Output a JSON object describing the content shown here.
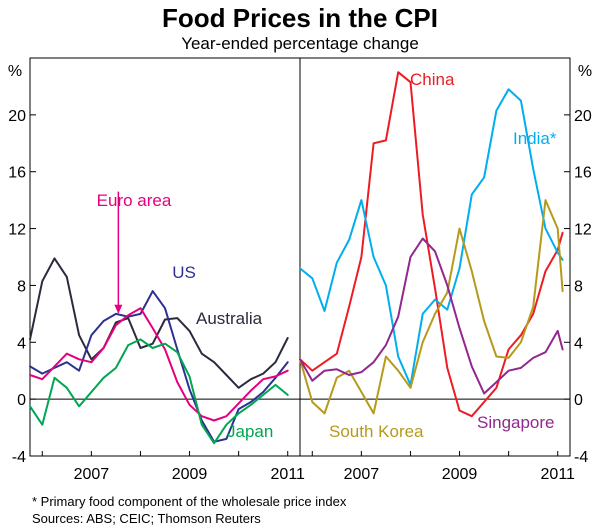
{
  "chart_data": {
    "type": "line",
    "title": "Food Prices in the CPI",
    "subtitle": "Year-ended percentage change",
    "yunit": "%",
    "ylim": [
      -4,
      24
    ],
    "yticks": [
      -4,
      0,
      4,
      8,
      12,
      16,
      20
    ],
    "footnote": "*    Primary food component of the wholesale price index",
    "sources": "Sources: ABS; CEIC; Thomson Reuters",
    "panels": [
      {
        "name": "left",
        "xlim": [
          2005.75,
          2011.25
        ],
        "xticks": [
          {
            "value": 2007,
            "label": "2007"
          },
          {
            "value": 2009,
            "label": "2009"
          },
          {
            "value": 2011,
            "label": "2011"
          }
        ],
        "annotation": {
          "label": "Euro area",
          "series": "Euro area",
          "from": [
            2007.55,
            14.6
          ],
          "to": [
            2007.55,
            6.5
          ]
        },
        "series": [
          {
            "name": "Australia",
            "label": "Australia",
            "color": "#2b2b3d",
            "x": [
              2005.75,
              2006.0,
              2006.25,
              2006.5,
              2006.75,
              2007.0,
              2007.25,
              2007.5,
              2007.75,
              2008.0,
              2008.25,
              2008.5,
              2008.75,
              2009.0,
              2009.25,
              2009.5,
              2009.75,
              2010.0,
              2010.25,
              2010.5,
              2010.75,
              2011.0
            ],
            "y": [
              4.2,
              8.3,
              9.9,
              8.6,
              4.5,
              2.8,
              3.6,
              5.4,
              5.7,
              3.6,
              3.9,
              5.6,
              5.7,
              4.8,
              3.2,
              2.6,
              1.7,
              0.8,
              1.4,
              1.8,
              2.6,
              4.3
            ]
          },
          {
            "name": "US",
            "label": "US",
            "color": "#2e3192",
            "x": [
              2005.75,
              2006.0,
              2006.25,
              2006.5,
              2006.75,
              2007.0,
              2007.25,
              2007.5,
              2007.75,
              2008.0,
              2008.25,
              2008.5,
              2008.75,
              2009.0,
              2009.25,
              2009.5,
              2009.75,
              2010.0,
              2010.25,
              2010.5,
              2010.75,
              2011.0
            ],
            "y": [
              2.3,
              1.8,
              2.2,
              2.6,
              2.0,
              4.5,
              5.5,
              6.0,
              5.8,
              6.0,
              7.6,
              6.4,
              3.5,
              0.7,
              -1.5,
              -3.0,
              -2.8,
              -0.7,
              -0.2,
              0.5,
              1.5,
              2.6
            ]
          },
          {
            "name": "Euro area",
            "label": "Euro area",
            "color": "#e6007e",
            "x": [
              2005.75,
              2006.0,
              2006.25,
              2006.5,
              2006.75,
              2007.0,
              2007.25,
              2007.5,
              2007.75,
              2008.0,
              2008.25,
              2008.5,
              2008.75,
              2009.0,
              2009.25,
              2009.5,
              2009.75,
              2010.0,
              2010.25,
              2010.5,
              2010.75,
              2011.0
            ],
            "y": [
              1.7,
              1.4,
              2.3,
              3.2,
              2.8,
              2.6,
              3.6,
              5.2,
              5.9,
              6.4,
              5.0,
              3.5,
              1.2,
              -0.4,
              -1.2,
              -1.5,
              -1.2,
              -0.3,
              0.6,
              1.4,
              1.6,
              2.0
            ]
          },
          {
            "name": "Japan",
            "label": "Japan",
            "color": "#00a651",
            "x": [
              2005.75,
              2006.0,
              2006.25,
              2006.5,
              2006.75,
              2007.0,
              2007.25,
              2007.5,
              2007.75,
              2008.0,
              2008.25,
              2008.5,
              2008.75,
              2009.0,
              2009.25,
              2009.5,
              2009.75,
              2010.0,
              2010.25,
              2010.5,
              2010.75,
              2011.0
            ],
            "y": [
              -0.5,
              -1.8,
              1.5,
              0.8,
              -0.5,
              0.5,
              1.5,
              2.2,
              3.8,
              4.2,
              3.6,
              3.9,
              3.3,
              1.6,
              -1.8,
              -3.1,
              -1.8,
              -1.0,
              -0.4,
              0.3,
              1.0,
              0.3
            ]
          }
        ]
      },
      {
        "name": "right",
        "xlim": [
          2005.75,
          2011.25
        ],
        "xticks": [
          {
            "value": 2007,
            "label": "2007"
          },
          {
            "value": 2009,
            "label": "2009"
          },
          {
            "value": 2011,
            "label": "2011"
          }
        ],
        "series": [
          {
            "name": "China",
            "label": "China",
            "color": "#ed1c24",
            "x": [
              2005.75,
              2006.0,
              2006.25,
              2006.5,
              2006.75,
              2007.0,
              2007.25,
              2007.5,
              2007.75,
              2008.0,
              2008.25,
              2008.5,
              2008.75,
              2009.0,
              2009.25,
              2009.5,
              2009.75,
              2010.0,
              2010.25,
              2010.5,
              2010.75,
              2011.0,
              2011.1
            ],
            "y": [
              2.8,
              2.0,
              2.6,
              3.2,
              6.5,
              10.0,
              18.0,
              18.2,
              23.0,
              22.3,
              13.0,
              7.8,
              2.2,
              -0.8,
              -1.2,
              -0.2,
              0.8,
              3.5,
              4.5,
              6.0,
              9.0,
              10.5,
              11.7
            ]
          },
          {
            "name": "India",
            "label": "India*",
            "color": "#00aeef",
            "x": [
              2005.75,
              2006.0,
              2006.25,
              2006.5,
              2006.75,
              2007.0,
              2007.25,
              2007.5,
              2007.75,
              2008.0,
              2008.25,
              2008.5,
              2008.75,
              2009.0,
              2009.25,
              2009.5,
              2009.75,
              2010.0,
              2010.25,
              2010.5,
              2010.75,
              2011.0,
              2011.1
            ],
            "y": [
              9.2,
              8.5,
              6.2,
              9.6,
              11.2,
              14.0,
              10.0,
              8.0,
              3.0,
              1.0,
              6.0,
              7.0,
              6.3,
              9.2,
              14.4,
              15.6,
              20.3,
              21.8,
              21.0,
              16.2,
              12.0,
              10.3,
              9.8
            ]
          },
          {
            "name": "South Korea",
            "label": "South Korea",
            "color": "#b59a1c",
            "x": [
              2005.75,
              2006.0,
              2006.25,
              2006.5,
              2006.75,
              2007.0,
              2007.25,
              2007.5,
              2007.75,
              2008.0,
              2008.25,
              2008.5,
              2008.75,
              2009.0,
              2009.25,
              2009.5,
              2009.75,
              2010.0,
              2010.25,
              2010.5,
              2010.75,
              2011.0,
              2011.1
            ],
            "y": [
              2.8,
              -0.2,
              -1.0,
              1.5,
              2.0,
              0.5,
              -1.0,
              3.0,
              2.0,
              0.8,
              4.0,
              6.0,
              7.5,
              12.0,
              9.0,
              5.5,
              3.0,
              2.9,
              4.0,
              6.5,
              14.0,
              12.0,
              7.6
            ]
          },
          {
            "name": "Singapore",
            "label": "Singapore",
            "color": "#92278f",
            "x": [
              2005.75,
              2006.0,
              2006.25,
              2006.5,
              2006.75,
              2007.0,
              2007.25,
              2007.5,
              2007.75,
              2008.0,
              2008.25,
              2008.5,
              2008.75,
              2009.0,
              2009.25,
              2009.5,
              2009.75,
              2010.0,
              2010.25,
              2010.5,
              2010.75,
              2011.0,
              2011.1
            ],
            "y": [
              2.8,
              1.3,
              2.0,
              2.1,
              1.7,
              1.9,
              2.6,
              3.8,
              5.8,
              10.0,
              11.3,
              10.4,
              8.0,
              5.0,
              2.3,
              0.4,
              1.2,
              2.0,
              2.2,
              2.9,
              3.3,
              4.8,
              3.5
            ]
          }
        ]
      }
    ]
  }
}
